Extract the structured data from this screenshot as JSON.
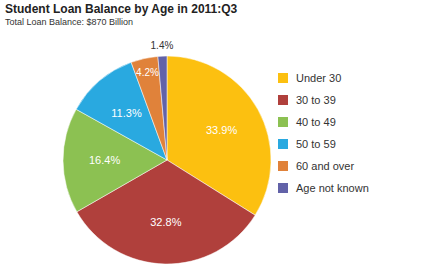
{
  "chart_data": {
    "type": "pie",
    "title": "Student Loan Balance by Age in 2011:Q3",
    "subtitle": "Total Loan Balance: $870 Billion",
    "categories": [
      "Under 30",
      "30 to 39",
      "40 to 49",
      "50 to 59",
      "60 and over",
      "Age not known"
    ],
    "values": [
      33.9,
      32.8,
      16.4,
      11.3,
      4.2,
      1.4
    ],
    "value_labels": [
      "33.9%",
      "32.8%",
      "16.4%",
      "11.3%",
      "4.2%",
      "1.4%"
    ],
    "colors": [
      "#fcc010",
      "#b0403c",
      "#8cc152",
      "#29a9e0",
      "#e0823a",
      "#6262a8"
    ],
    "data_labels": true,
    "legend": "right"
  }
}
